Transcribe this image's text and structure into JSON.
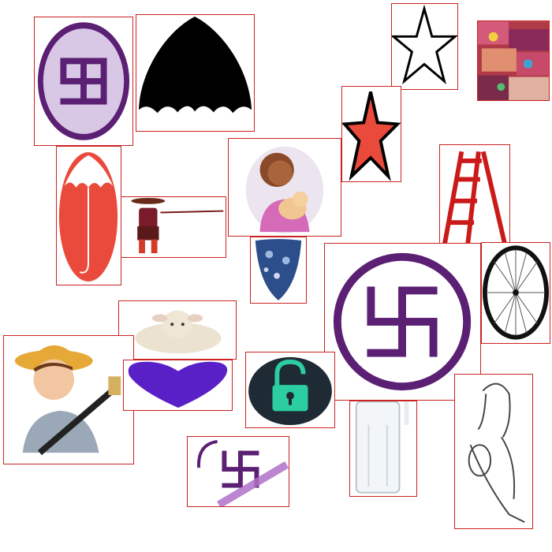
{
  "tiles": [
    {
      "id": "swastika-badge-top-left",
      "depicts": "swastika"
    },
    {
      "id": "umbrella-black",
      "depicts": "umbrella"
    },
    {
      "id": "star-outline",
      "depicts": "star"
    },
    {
      "id": "textiles-photo",
      "depicts": "photo"
    },
    {
      "id": "star-red",
      "depicts": "star"
    },
    {
      "id": "umbrella-red",
      "depicts": "umbrella"
    },
    {
      "id": "mother-breastfeeding",
      "depicts": "mother-and-baby"
    },
    {
      "id": "hunter-with-spear",
      "depicts": "hunter"
    },
    {
      "id": "ladder-red",
      "depicts": "ladder"
    },
    {
      "id": "paisley-fabric",
      "depicts": "fabric"
    },
    {
      "id": "swastika-circle-large",
      "depicts": "swastika"
    },
    {
      "id": "wheel",
      "depicts": "wheel"
    },
    {
      "id": "lamb",
      "depicts": "lamb"
    },
    {
      "id": "farmer-with-hoe",
      "depicts": "farmer"
    },
    {
      "id": "heart-purple",
      "depicts": "heart"
    },
    {
      "id": "padlock-open",
      "depicts": "padlock"
    },
    {
      "id": "glass-bottle",
      "depicts": "bottle"
    },
    {
      "id": "mother-sketch",
      "depicts": "mother-and-baby"
    },
    {
      "id": "swastika-crossed",
      "depicts": "swastika"
    }
  ],
  "colors": {
    "frame": "#cc2222",
    "purple": "#5b1f73",
    "red": "#ea4a3c",
    "heart": "#5a20c8",
    "teal": "#2ccda0"
  }
}
